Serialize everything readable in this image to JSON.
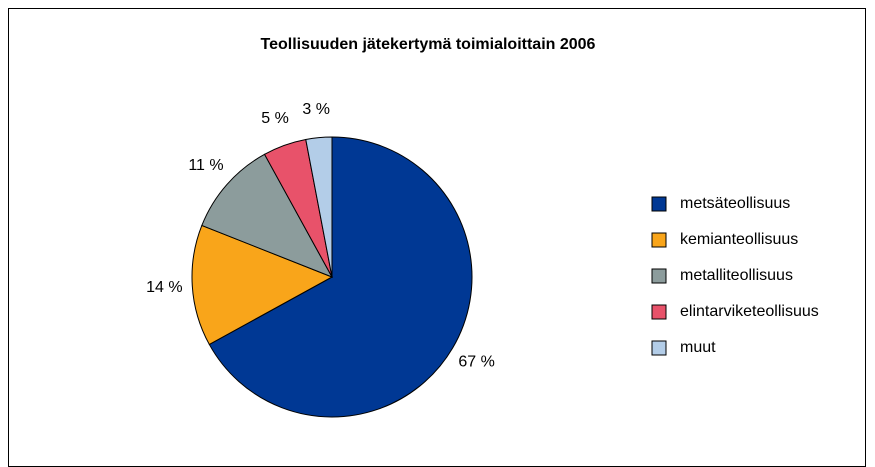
{
  "chart_data": {
    "type": "pie",
    "title": "Teollisuuden jätekertymä toimialoittain 2006",
    "categories": [
      "metsäteollisuus",
      "kemianteollisuus",
      "metalliteollisuus",
      "elintarviketeollisuus",
      "muut"
    ],
    "values": [
      67,
      14,
      11,
      5,
      3
    ],
    "value_labels": [
      "67 %",
      "14 %",
      "11 %",
      "5 %",
      "3 %"
    ],
    "colors": [
      "#003894",
      "#f9a51a",
      "#8c9c9c",
      "#e8526a",
      "#b3cde8"
    ],
    "legend": "right"
  }
}
